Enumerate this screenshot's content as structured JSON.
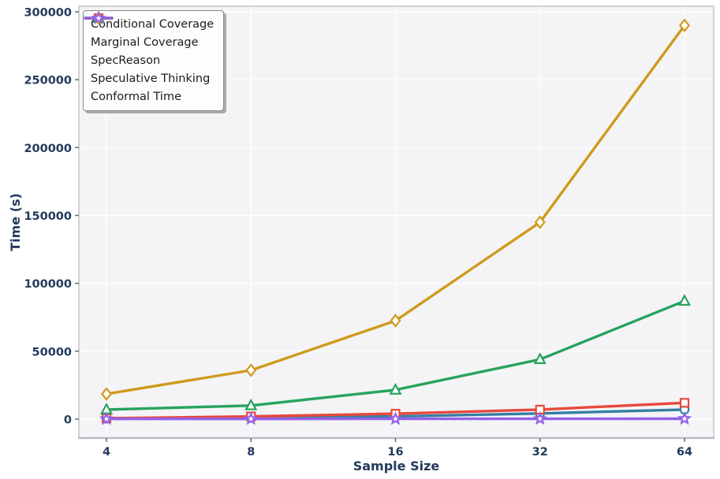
{
  "figure": {
    "background": "#ffffff",
    "plot_background": "#f4f4f6",
    "grid_color": "#ffffff",
    "spine_color": "#c6cad0",
    "bottom_spine_color": "#b6bcc3",
    "tick_mark_color": "#55627a",
    "tick_label_color": "#243a5c",
    "axis_label_color": "#243a5c"
  },
  "chart_data": {
    "type": "line",
    "title": "",
    "xlabel": "Sample Size",
    "ylabel": "Time (s)",
    "x_scale": "log2",
    "grid": true,
    "legend_position": "upper left",
    "x": [
      4,
      8,
      16,
      32,
      64
    ],
    "x_tick_labels": [
      "4",
      "8",
      "16",
      "32",
      "64"
    ],
    "y_ticks": [
      0,
      50000,
      100000,
      150000,
      200000,
      250000,
      300000
    ],
    "y_tick_labels": [
      "0",
      "50000",
      "100000",
      "150000",
      "200000",
      "250000",
      "300000"
    ],
    "ylim": [
      0,
      300000
    ],
    "series": [
      {
        "name": "Conditional Coverage",
        "color": "#347fa4",
        "marker": "circle",
        "values": [
          500,
          1200,
          2000,
          4200,
          7000
        ]
      },
      {
        "name": "Marginal Coverage",
        "color": "#e8483c",
        "marker": "square",
        "values": [
          600,
          2000,
          4000,
          7000,
          12000
        ]
      },
      {
        "name": "SpecReason",
        "color": "#27a35e",
        "marker": "triangle",
        "values": [
          7000,
          10000,
          21500,
          44000,
          87000
        ]
      },
      {
        "name": "Speculative Thinking",
        "color": "#cf9a1d",
        "marker": "diamond",
        "values": [
          18500,
          36000,
          72500,
          145000,
          290000
        ]
      },
      {
        "name": "Conformal Time",
        "color": "#9561e8",
        "marker": "star",
        "values": [
          150,
          180,
          220,
          260,
          300
        ]
      }
    ]
  }
}
